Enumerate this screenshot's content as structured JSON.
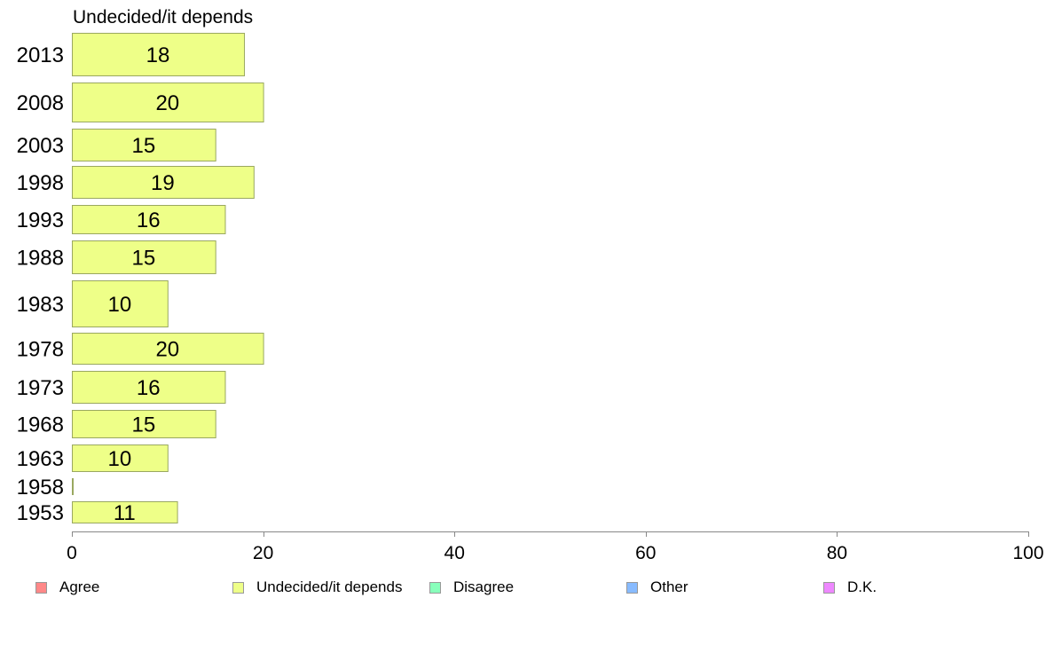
{
  "chart_data": {
    "type": "bar",
    "orientation": "horizontal",
    "title": "Undecided/it depends",
    "categories": [
      "2013",
      "2008",
      "2003",
      "1998",
      "1993",
      "1988",
      "1983",
      "1978",
      "1973",
      "1968",
      "1963",
      "1958",
      "1953"
    ],
    "values": [
      18,
      20,
      15,
      19,
      16,
      15,
      10,
      20,
      16,
      15,
      10,
      0,
      11
    ],
    "series_color": "#eeff88",
    "xlim": [
      0,
      100
    ],
    "xticks": [
      0,
      20,
      40,
      60,
      80,
      100
    ],
    "grid": false,
    "legend_position": "bottom",
    "legend": [
      {
        "label": "Agree",
        "color": "#ff8888"
      },
      {
        "label": "Undecided/it depends",
        "color": "#eeff88"
      },
      {
        "label": "Disagree",
        "color": "#88ffbb"
      },
      {
        "label": "Other",
        "color": "#88bbff"
      },
      {
        "label": "D.K.",
        "color": "#ee88ff"
      }
    ]
  }
}
